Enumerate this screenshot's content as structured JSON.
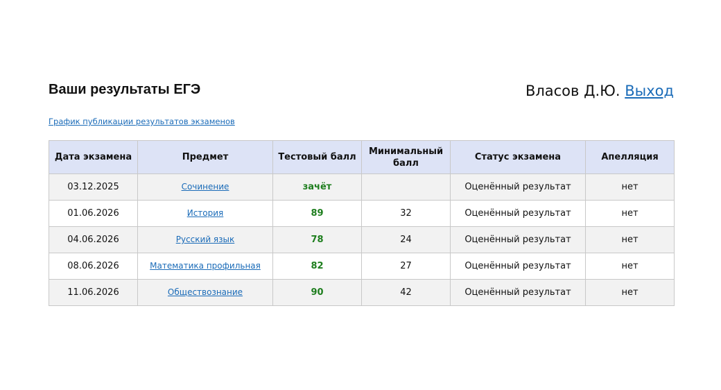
{
  "header": {
    "title": "Ваши результаты ЕГЭ",
    "user_name": "Власов Д.Ю.",
    "logout": "Выход",
    "schedule_link": "График публикации результатов экзаменов"
  },
  "table": {
    "columns": [
      "Дата экзамена",
      "Предмет",
      "Тестовый балл",
      "Минимальный балл",
      "Статус экзамена",
      "Апелляция"
    ],
    "rows": [
      [
        "03.12.2025",
        "Сочинение",
        "зачёт",
        null,
        "Оценённый результат",
        "нет"
      ],
      [
        "01.06.2026",
        "История",
        "89",
        "32",
        "Оценённый результат",
        "нет"
      ],
      [
        "04.06.2026",
        "Русский язык",
        "78",
        "24",
        "Оценённый результат",
        "нет"
      ],
      [
        "08.06.2026",
        "Математика профильная",
        "82",
        "27",
        "Оценённый результат",
        "нет"
      ],
      [
        "11.06.2026",
        "Обществознание",
        "90",
        "42",
        "Оценённый результат",
        "нет"
      ]
    ]
  }
}
